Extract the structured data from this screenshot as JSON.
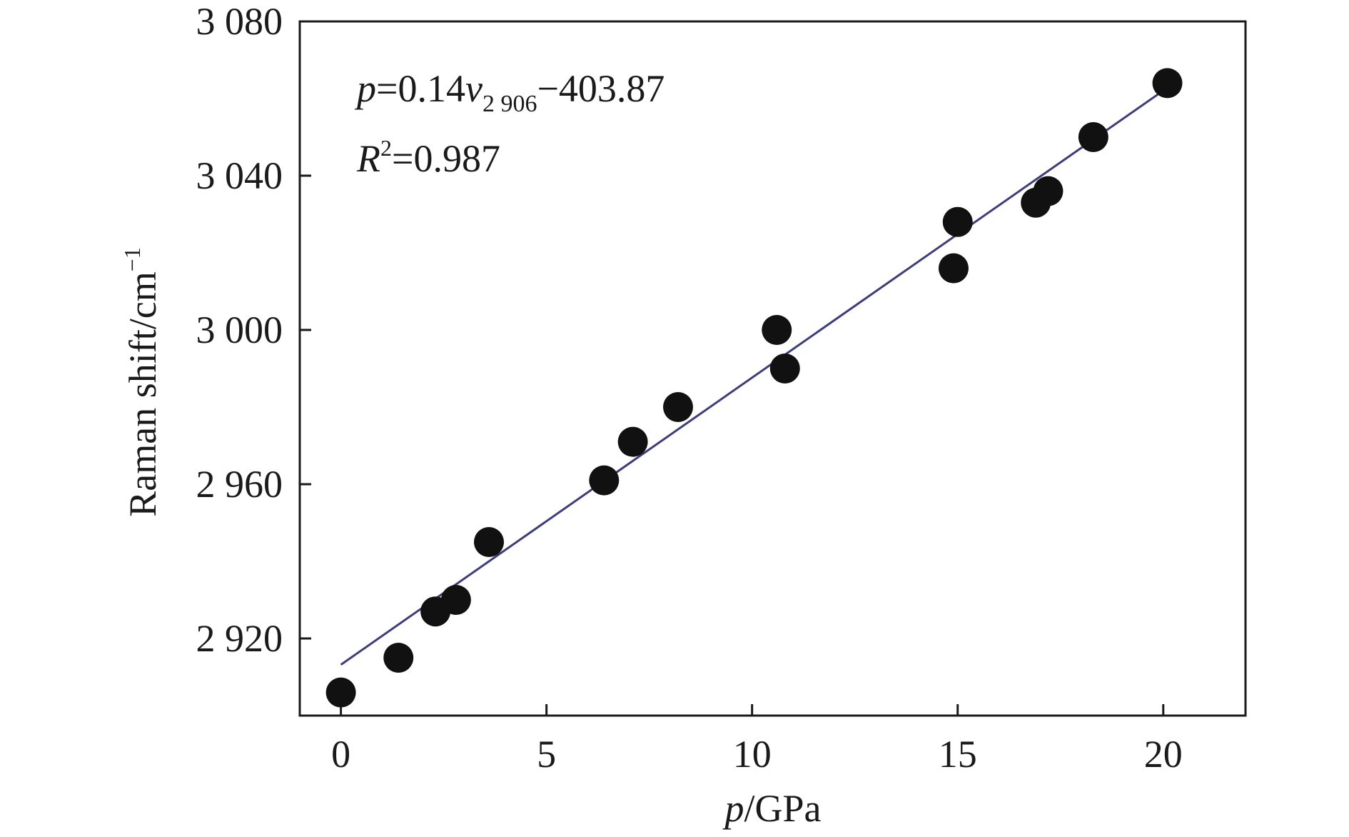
{
  "chart_data": {
    "type": "scatter",
    "x_axis": {
      "label_italic": "p",
      "label_rest": "/GPa",
      "range": [
        -1,
        22
      ],
      "ticks": [
        0,
        5,
        10,
        15,
        20
      ],
      "tick_labels": [
        "0",
        "5",
        "10",
        "15",
        "20"
      ]
    },
    "y_axis": {
      "label": "Raman shift/cm",
      "label_superscript": "−1",
      "range": [
        2900,
        3080
      ],
      "ticks": [
        2920,
        2960,
        3000,
        3040,
        3080
      ],
      "tick_labels": [
        "2 920",
        "2 960",
        "3 000",
        "3 040",
        "3 080"
      ]
    },
    "points": [
      {
        "x": 0.0,
        "y": 2906
      },
      {
        "x": 1.4,
        "y": 2915
      },
      {
        "x": 2.3,
        "y": 2927
      },
      {
        "x": 2.8,
        "y": 2930
      },
      {
        "x": 3.6,
        "y": 2945
      },
      {
        "x": 6.4,
        "y": 2961
      },
      {
        "x": 7.1,
        "y": 2971
      },
      {
        "x": 8.2,
        "y": 2980
      },
      {
        "x": 10.6,
        "y": 3000
      },
      {
        "x": 10.8,
        "y": 2990
      },
      {
        "x": 14.9,
        "y": 3016
      },
      {
        "x": 15.0,
        "y": 3028
      },
      {
        "x": 16.9,
        "y": 3033
      },
      {
        "x": 17.2,
        "y": 3036
      },
      {
        "x": 18.3,
        "y": 3050
      },
      {
        "x": 20.1,
        "y": 3064
      }
    ],
    "fit_line": {
      "x": [
        0,
        20.1
      ],
      "y": [
        2913.2,
        3062.8
      ],
      "color": "#3d3d7a"
    },
    "annotation": {
      "eq_p": "p",
      "eq_mid": "=0.14",
      "eq_v": "v",
      "eq_sub": "2 906",
      "eq_tail": "−403.87",
      "r2_R": "R",
      "r2_sup": "2",
      "r2_tail": "=0.987"
    },
    "marker_color": "#111111",
    "grid": false
  }
}
